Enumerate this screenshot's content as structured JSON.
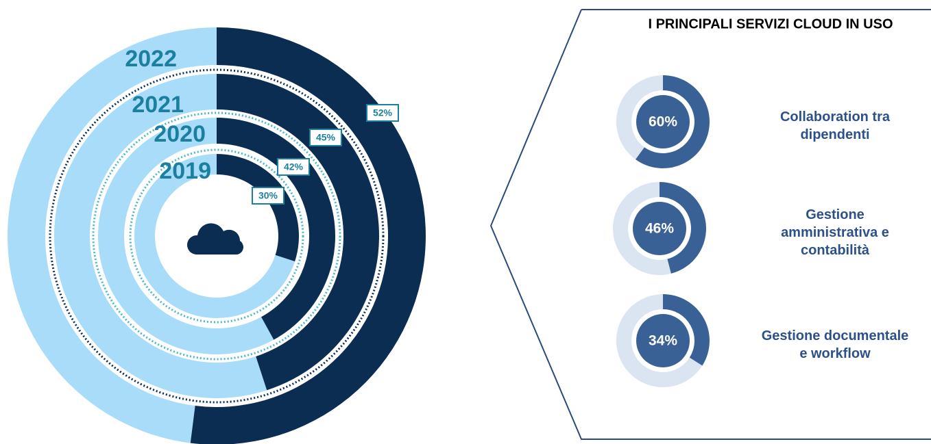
{
  "chart_data": [
    {
      "type": "radial_bar",
      "categories": [
        "2019",
        "2020",
        "2021",
        "2022"
      ],
      "values": [
        30,
        42,
        45,
        52
      ],
      "value_labels": [
        "30%",
        "42%",
        "45%",
        "52%"
      ],
      "ylim": [
        0,
        100
      ],
      "color": "#0b2d52",
      "track_color": "#a8dcf8",
      "label_color": "#1b7fa0"
    },
    {
      "type": "donut",
      "title": "I PRINCIPALI SERVIZI CLOUD IN USO",
      "categories": [
        "Collaboration tra dipendenti",
        "Gestione amministrativa e contabilità",
        "Gestione documentale e workflow"
      ],
      "values": [
        60,
        46,
        34
      ],
      "value_labels": [
        "60%",
        "46%",
        "34%"
      ],
      "ylim": [
        0,
        100
      ],
      "color": "#3a6196",
      "track_color": "#dbe4f1",
      "label_color": "#2c5189"
    }
  ]
}
